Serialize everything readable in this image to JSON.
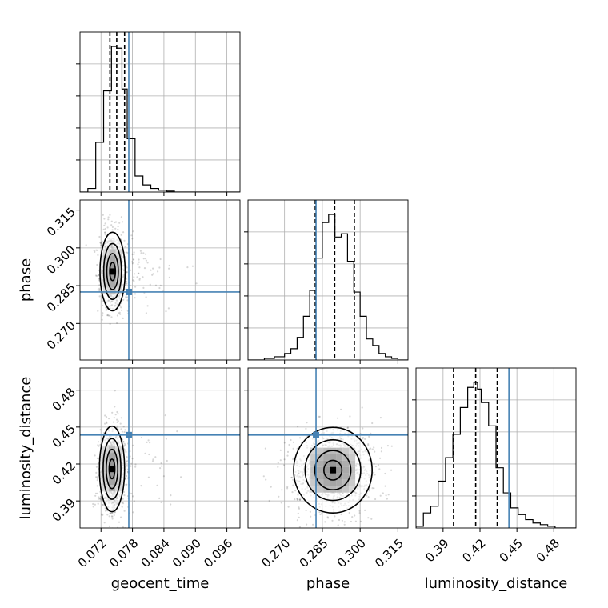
{
  "chart_data": {
    "type": "corner",
    "parameters": [
      "geocent_time",
      "phase",
      "luminosity_distance"
    ],
    "truth_color": "#4682b4",
    "grid": true,
    "truths": {
      "geocent_time": 0.0773,
      "phase": 0.2825,
      "luminosity_distance": 0.4435
    },
    "ranges": {
      "geocent_time": [
        0.068,
        0.0985
      ],
      "phase": [
        0.2555,
        0.319
      ],
      "luminosity_distance": [
        0.368,
        0.498
      ]
    },
    "tick_labels": {
      "geocent_time": [
        "0.072",
        "0.078",
        "0.084",
        "0.090",
        "0.096"
      ],
      "phase": [
        "0.270",
        "0.285",
        "0.300",
        "0.315"
      ],
      "luminosity_distance": [
        "0.39",
        "0.42",
        "0.45",
        "0.48"
      ]
    },
    "ticks": {
      "geocent_time": [
        0.072,
        0.078,
        0.084,
        0.09,
        0.096
      ],
      "phase": [
        0.27,
        0.285,
        0.3,
        0.315
      ],
      "luminosity_distance": [
        0.39,
        0.42,
        0.45,
        0.48
      ]
    },
    "quantiles": {
      "geocent_time": [
        0.0737,
        0.075,
        0.0765
      ],
      "phase": [
        0.2822,
        0.2899,
        0.2977
      ],
      "luminosity_distance": [
        0.3985,
        0.4165,
        0.434
      ]
    },
    "histograms": {
      "geocent_time": {
        "edges": [
          0.068,
          0.0695,
          0.071,
          0.0725,
          0.074,
          0.075,
          0.076,
          0.077,
          0.0785,
          0.08,
          0.0815,
          0.083,
          0.0845,
          0.086,
          0.098,
          0.0985
        ],
        "counts": [
          0,
          2,
          28,
          57,
          82,
          81,
          58,
          30,
          9,
          4,
          2,
          1,
          0.5,
          0,
          0
        ]
      },
      "phase": {
        "edges": [
          0.2555,
          0.262,
          0.266,
          0.27,
          0.2725,
          0.275,
          0.2775,
          0.28,
          0.2825,
          0.285,
          0.2875,
          0.29,
          0.2925,
          0.295,
          0.2975,
          0.3,
          0.3025,
          0.305,
          0.3075,
          0.31,
          0.3125,
          0.315,
          0.319
        ],
        "counts": [
          0,
          1,
          2,
          4,
          7,
          14,
          27,
          43,
          63,
          85,
          90,
          76,
          78,
          61,
          42,
          27,
          13,
          9,
          4,
          2,
          1,
          0
        ]
      },
      "luminosity_distance": {
        "edges": [
          0.368,
          0.374,
          0.38,
          0.386,
          0.392,
          0.398,
          0.404,
          0.41,
          0.415,
          0.418,
          0.421,
          0.427,
          0.433,
          0.439,
          0.445,
          0.451,
          0.457,
          0.463,
          0.469,
          0.475,
          0.481,
          0.498
        ],
        "counts": [
          1,
          9,
          13,
          28,
          42,
          56,
          72,
          84,
          87,
          83,
          75,
          61,
          36,
          21,
          12,
          8,
          5,
          3,
          2,
          1,
          0
        ]
      }
    },
    "joint_modes": {
      "phase_vs_geocent_time": {
        "x": 0.0742,
        "y": 0.2906
      },
      "luminosity_distance_vs_geocent_time": {
        "x": 0.0741,
        "y": 0.416
      },
      "luminosity_distance_vs_phase": {
        "x": 0.2892,
        "y": 0.415
      }
    }
  }
}
